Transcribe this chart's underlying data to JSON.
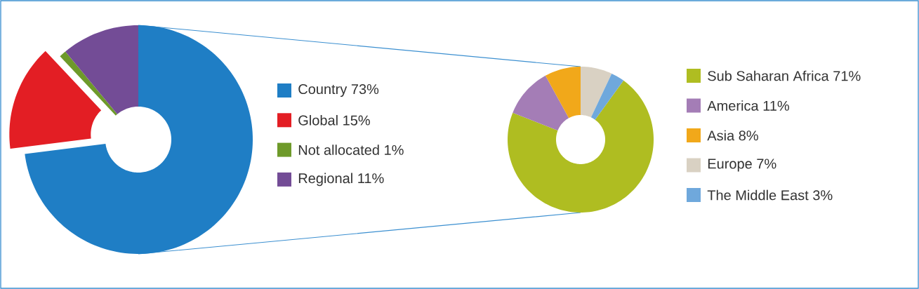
{
  "chart_data": [
    {
      "type": "donut",
      "categories": [
        "Country",
        "Global",
        "Not allocated",
        "Regional"
      ],
      "values": [
        73,
        15,
        1,
        11
      ],
      "value_labels": [
        "73%",
        "15%",
        "1%",
        "11%"
      ],
      "colors": [
        "#1f7ec5",
        "#e31e24",
        "#6e9a2a",
        "#734c96"
      ],
      "legend": "right"
    },
    {
      "type": "donut",
      "categories": [
        "Sub Saharan Africa",
        "America",
        "Asia",
        "Europe",
        "The Middle East"
      ],
      "values": [
        71,
        11,
        8,
        7,
        3
      ],
      "value_labels": [
        "71%",
        "11%",
        "8%",
        "7%",
        "3%"
      ],
      "colors": [
        "#afbd21",
        "#a47db6",
        "#f1a81a",
        "#d9d1c3",
        "#6fa8dc"
      ],
      "legend": "right"
    }
  ]
}
